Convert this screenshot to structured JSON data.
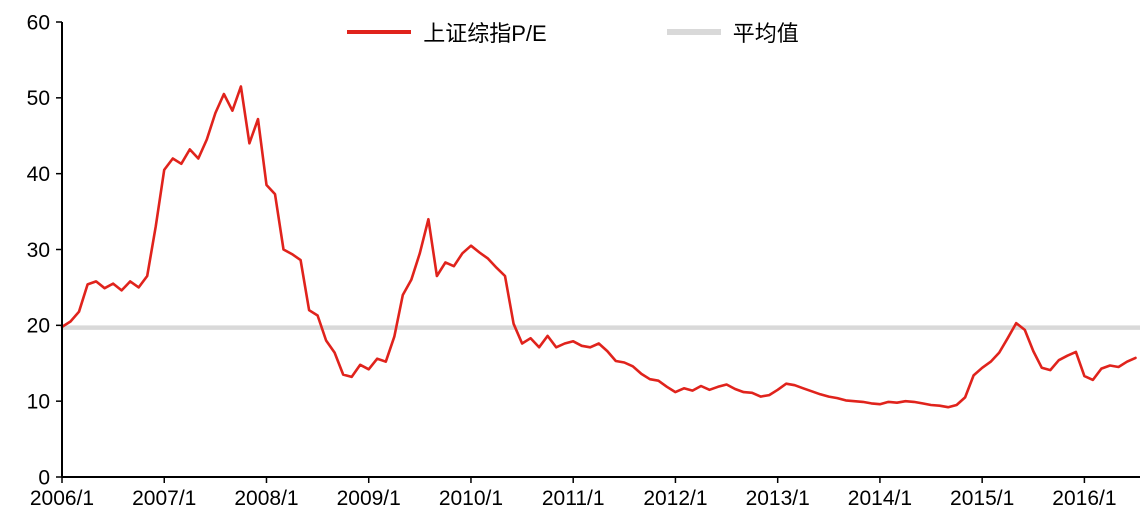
{
  "chart_data": {
    "type": "line",
    "title": "",
    "xlabel": "",
    "ylabel": "",
    "grid": false,
    "legend_position": "top-center",
    "ylim": [
      0,
      60
    ],
    "y_tick_labels": [
      "0",
      "10",
      "20",
      "30",
      "40",
      "50",
      "60"
    ],
    "x_tick_labels": [
      "2006/1",
      "2007/1",
      "2008/1",
      "2009/1",
      "2010/1",
      "2011/1",
      "2012/1",
      "2013/1",
      "2014/1",
      "2015/1",
      "2016/1"
    ],
    "x_frequency": "monthly",
    "x_range": [
      "2006/1",
      "2016/7"
    ],
    "series": [
      {
        "name": "上证综指P/E",
        "color": "#E0231C",
        "values": [
          19.8,
          20.5,
          21.8,
          25.4,
          25.8,
          24.9,
          25.5,
          24.6,
          25.8,
          25.0,
          26.5,
          33.0,
          40.5,
          42.0,
          41.3,
          43.2,
          42.0,
          44.5,
          48.0,
          50.5,
          48.3,
          51.5,
          44.0,
          47.2,
          38.5,
          37.3,
          30.0,
          29.4,
          28.6,
          22.0,
          21.3,
          18.0,
          16.4,
          13.5,
          13.2,
          14.8,
          14.2,
          15.6,
          15.2,
          18.5,
          24.0,
          26.0,
          29.5,
          34.0,
          26.5,
          28.3,
          27.8,
          29.5,
          30.5,
          29.6,
          28.8,
          27.6,
          26.5,
          20.2,
          17.6,
          18.3,
          17.1,
          18.6,
          17.1,
          17.6,
          17.9,
          17.3,
          17.1,
          17.6,
          16.6,
          15.3,
          15.1,
          14.6,
          13.6,
          12.9,
          12.7,
          11.9,
          11.2,
          11.7,
          11.4,
          12.0,
          11.5,
          11.9,
          12.2,
          11.6,
          11.2,
          11.1,
          10.6,
          10.8,
          11.5,
          12.3,
          12.1,
          11.7,
          11.3,
          10.9,
          10.6,
          10.4,
          10.1,
          10.0,
          9.9,
          9.7,
          9.6,
          9.9,
          9.8,
          10.0,
          9.9,
          9.7,
          9.5,
          9.4,
          9.2,
          9.5,
          10.5,
          13.4,
          14.4,
          15.2,
          16.4,
          18.3,
          20.3,
          19.4,
          16.6,
          14.4,
          14.1,
          15.4,
          16.0,
          16.5,
          13.3,
          12.8,
          14.3,
          14.7,
          14.5,
          15.2,
          15.7
        ]
      },
      {
        "name": "平均值",
        "color": "#D9D9D9",
        "type": "constant",
        "value": 19.7
      }
    ]
  },
  "colors": {
    "line_red": "#E0231C",
    "avg_gray": "#D9D9D9",
    "axis_black": "#000000",
    "background": "#FFFFFF"
  }
}
